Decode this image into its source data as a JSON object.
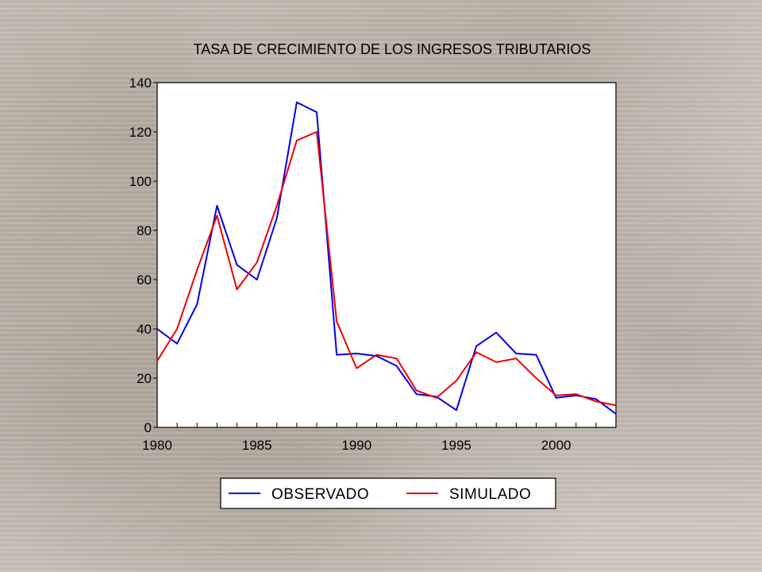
{
  "chart_data": {
    "type": "line",
    "title": "TASA DE CRECIMIENTO DE LOS INGRESOS TRIBUTARIOS",
    "xlabel": "",
    "ylabel": "",
    "xlim": [
      1980,
      2003
    ],
    "ylim": [
      0,
      140
    ],
    "x_ticks": [
      "1980",
      "1985",
      "1990",
      "1995",
      "2000"
    ],
    "y_ticks": [
      "0",
      "20",
      "40",
      "60",
      "80",
      "100",
      "120",
      "140"
    ],
    "legend_position": "bottom",
    "grid": false,
    "x": [
      1980,
      1981,
      1982,
      1983,
      1984,
      1985,
      1986,
      1987,
      1988,
      1989,
      1990,
      1991,
      1992,
      1993,
      1994,
      1995,
      1996,
      1997,
      1998,
      1999,
      2000,
      2001,
      2002,
      2003
    ],
    "series": [
      {
        "name": "OBSERVADO",
        "color": "#0000ee",
        "values": [
          40,
          34,
          50,
          90,
          66,
          60,
          85,
          132,
          128,
          29.5,
          30,
          29,
          25,
          13.5,
          12.5,
          7,
          33,
          38.5,
          30,
          29.5,
          12,
          13,
          11.5,
          5.5
        ]
      },
      {
        "name": "SIMULADO",
        "color": "#ee0000",
        "values": [
          27,
          40,
          64,
          86,
          56,
          67,
          90,
          116.5,
          120,
          43,
          24,
          29.5,
          28,
          15,
          12,
          19,
          30.5,
          26.5,
          28,
          20,
          13,
          13.5,
          10.5,
          9
        ]
      }
    ]
  }
}
